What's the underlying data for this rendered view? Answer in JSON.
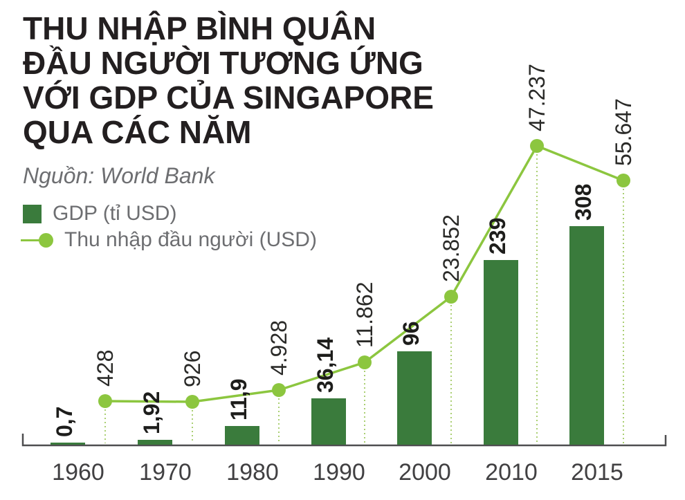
{
  "title": {
    "lines": [
      "THU NHẬP BÌNH QUÂN",
      "ĐẦU NGƯỜI TƯƠNG ỨNG",
      "VỚI GDP CỦA SINGAPORE",
      "QUA CÁC NĂM"
    ]
  },
  "source": "Nguồn: World Bank",
  "legend": {
    "gdp": "GDP (tỉ USD)",
    "income": "Thu nhập đầu người (USD)"
  },
  "colors": {
    "bar_green": "#3a7b3c",
    "line_green": "#8cc63f",
    "dotted_guide": "#aacf72",
    "title_text": "#231f20",
    "muted_text": "#6d6e71",
    "axis": "#4d4d4f",
    "year_text": "#414042",
    "value_text": "#1d1d1b",
    "background": "#ffffff"
  },
  "chart_data": {
    "type": "combo",
    "subtypes": [
      "bar",
      "line"
    ],
    "title": "Thu nhập bình quân đầu người tương ứng với GDP của Singapore qua các năm",
    "source": "World Bank",
    "categories": [
      "1960",
      "1970",
      "1980",
      "1990",
      "2000",
      "2010",
      "2015"
    ],
    "series": [
      {
        "name": "GDP (tỉ USD)",
        "type": "bar",
        "values": [
          0.7,
          1.92,
          11.9,
          36.14,
          96,
          239,
          308
        ],
        "labels": [
          "0,7",
          "1,92",
          "11,9",
          "36,14",
          "96",
          "239",
          "308"
        ],
        "color": "#3a7b3c"
      },
      {
        "name": "Thu nhập đầu người (USD)",
        "type": "line",
        "values": [
          428,
          926,
          4928,
          11862,
          23852,
          47237,
          55647
        ],
        "labels": [
          "428",
          "926",
          "4.928",
          "11.862",
          "23.852",
          "47.237",
          "55.647"
        ],
        "color": "#8cc63f"
      }
    ],
    "legend_position": "top-left",
    "grid": false,
    "value_labels_rotated_90": true,
    "dotted_vertical_guides": true
  }
}
